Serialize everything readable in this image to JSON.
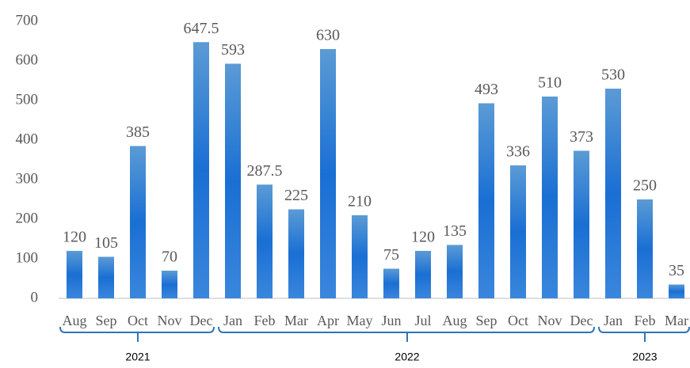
{
  "chart_data": {
    "type": "bar",
    "categories": [
      "Aug",
      "Sep",
      "Oct",
      "Nov",
      "Dec",
      "Jan",
      "Feb",
      "Mar",
      "Apr",
      "May",
      "Jun",
      "Jul",
      "Aug",
      "Sep",
      "Oct",
      "Nov",
      "Dec",
      "Jan",
      "Feb",
      "Mar"
    ],
    "values": [
      120,
      105,
      385,
      70,
      647.5,
      593,
      287.5,
      225,
      630,
      210,
      75,
      120,
      135,
      493,
      336,
      510,
      373,
      530,
      250,
      35
    ],
    "groups": [
      {
        "label": "2021",
        "count": 5
      },
      {
        "label": "2022",
        "count": 12
      },
      {
        "label": "2023",
        "count": 3
      }
    ],
    "color": "#1a6fd4",
    "ylim": [
      0,
      700
    ],
    "yticks": [
      0,
      100,
      200,
      300,
      400,
      500,
      600,
      700
    ],
    "grid": false
  }
}
